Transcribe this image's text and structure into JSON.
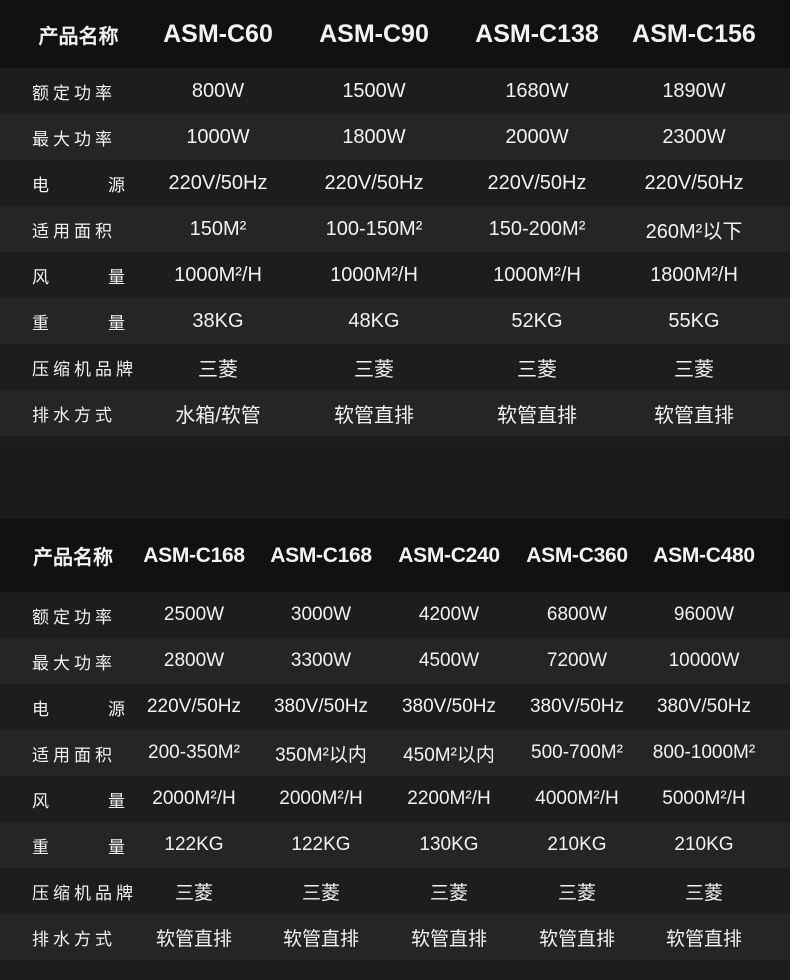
{
  "table1": {
    "header_label": "产品名称",
    "models": [
      "ASM-C60",
      "ASM-C90",
      "ASM-C138",
      "ASM-C156"
    ],
    "rows": [
      {
        "label": "额定功率",
        "values": [
          "800W",
          "1500W",
          "1680W",
          "1890W"
        ]
      },
      {
        "label": "最大功率",
        "values": [
          "1000W",
          "1800W",
          "2000W",
          "2300W"
        ]
      },
      {
        "label": "电源",
        "values": [
          "220V/50Hz",
          "220V/50Hz",
          "220V/50Hz",
          "220V/50Hz"
        ]
      },
      {
        "label": "适用面积",
        "values": [
          "150M²",
          "100-150M²",
          "150-200M²",
          "260M²以下"
        ]
      },
      {
        "label": "风量",
        "values": [
          "1000M²/H",
          "1000M²/H",
          "1000M²/H",
          "1800M²/H"
        ]
      },
      {
        "label": "重量",
        "values": [
          "38KG",
          "48KG",
          "52KG",
          "55KG"
        ]
      },
      {
        "label": "压缩机品牌",
        "values": [
          "三菱",
          "三菱",
          "三菱",
          "三菱"
        ]
      },
      {
        "label": "排水方式",
        "values": [
          "水箱/软管",
          "软管直排",
          "软管直排",
          "软管直排"
        ]
      }
    ]
  },
  "table2": {
    "header_label": "产品名称",
    "models": [
      "ASM-C168",
      "ASM-C168",
      "ASM-C240",
      "ASM-C360",
      "ASM-C480"
    ],
    "rows": [
      {
        "label": "额定功率",
        "values": [
          "2500W",
          "3000W",
          "4200W",
          "6800W",
          "9600W"
        ]
      },
      {
        "label": "最大功率",
        "values": [
          "2800W",
          "3300W",
          "4500W",
          "7200W",
          "10000W"
        ]
      },
      {
        "label": "电源",
        "values": [
          "220V/50Hz",
          "380V/50Hz",
          "380V/50Hz",
          "380V/50Hz",
          "380V/50Hz"
        ]
      },
      {
        "label": "适用面积",
        "values": [
          "200-350M²",
          "350M²以内",
          "450M²以内",
          "500-700M²",
          "800-1000M²"
        ]
      },
      {
        "label": "风量",
        "values": [
          "2000M²/H",
          "2000M²/H",
          "2200M²/H",
          "4000M²/H",
          "5000M²/H"
        ]
      },
      {
        "label": "重量",
        "values": [
          "122KG",
          "122KG",
          "130KG",
          "210KG",
          "210KG"
        ]
      },
      {
        "label": "压缩机品牌",
        "values": [
          "三菱",
          "三菱",
          "三菱",
          "三菱",
          "三菱"
        ]
      },
      {
        "label": "排水方式",
        "values": [
          "软管直排",
          "软管直排",
          "软管直排",
          "软管直排",
          "软管直排"
        ]
      }
    ]
  }
}
